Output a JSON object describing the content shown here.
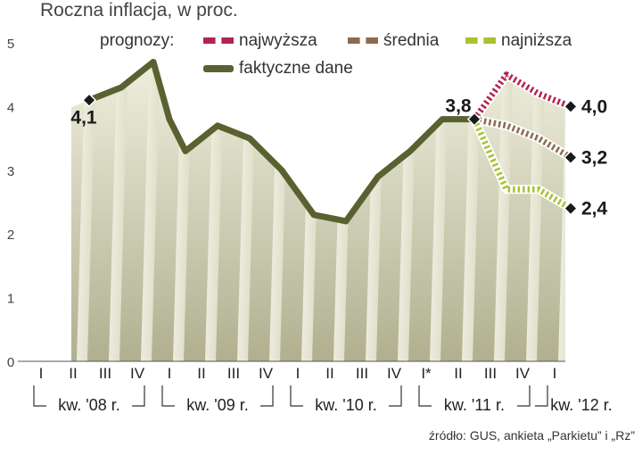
{
  "chart_data": {
    "type": "line",
    "title": "Roczna inflacja, w proc.",
    "source": "źródło: GUS, ankieta „Parkietu” i „Rz”",
    "legend_prefix": "prognozy:",
    "ylim": [
      0,
      5
    ],
    "y_ticks": [
      "0",
      "1",
      "2",
      "3",
      "4",
      "5"
    ],
    "x_tick_labels": [
      "I",
      "II",
      "III",
      "IV",
      "I",
      "II",
      "III",
      "IV",
      "I",
      "II",
      "III",
      "IV",
      "I*",
      "II",
      "III",
      "IV",
      "I"
    ],
    "year_groups": [
      {
        "label": "kw. '08 r."
      },
      {
        "label": "kw. '09 r."
      },
      {
        "label": "kw. '10 r."
      },
      {
        "label": "kw. '11 r."
      },
      {
        "label": "kw. '12 r."
      }
    ],
    "series": [
      {
        "name": "faktyczne dane",
        "color": "#5a6130",
        "style": "solid",
        "x": [
          1.5,
          2.5,
          3.5,
          4,
          4.5,
          5.5,
          6.5,
          7.5,
          8.5,
          9.5,
          10.5,
          11.5,
          12.5,
          13.5
        ],
        "values": [
          4.1,
          4.3,
          4.7,
          3.8,
          3.3,
          3.7,
          3.5,
          3.0,
          2.3,
          2.2,
          2.9,
          3.3,
          3.8,
          3.8
        ]
      },
      {
        "name": "najwyższa",
        "color": "#b32353",
        "style": "dashed",
        "x": [
          13.5,
          14.5,
          15.5,
          16.5
        ],
        "values": [
          3.8,
          4.5,
          4.2,
          4.0
        ]
      },
      {
        "name": "średnia",
        "color": "#8c6b50",
        "style": "dashed",
        "x": [
          13.5,
          14.5,
          15.5,
          16.5
        ],
        "values": [
          3.8,
          3.7,
          3.5,
          3.2
        ]
      },
      {
        "name": "najniższa",
        "color": "#a7c233",
        "style": "dashed",
        "x": [
          13.5,
          14.5,
          15.5,
          16.5
        ],
        "values": [
          3.8,
          2.7,
          2.7,
          2.4
        ]
      }
    ],
    "data_labels": [
      {
        "text": "4,1",
        "x": 1.5,
        "value": 4.1
      },
      {
        "text": "3,8",
        "x": 13.5,
        "value": 3.8
      },
      {
        "text": "4,0",
        "x": 16.5,
        "value": 4.0
      },
      {
        "text": "3,2",
        "x": 16.5,
        "value": 3.2
      },
      {
        "text": "2,4",
        "x": 16.5,
        "value": 2.4
      }
    ]
  }
}
